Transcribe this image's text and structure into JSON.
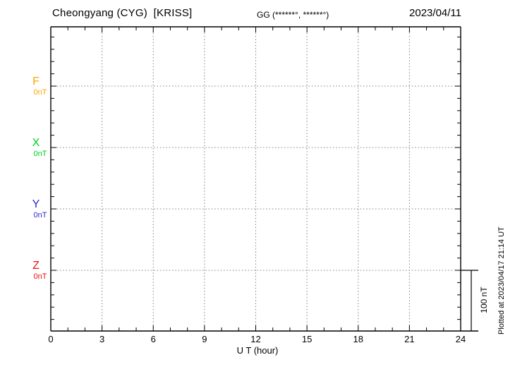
{
  "header": {
    "title": "Cheongyang (CYG)  [KRISS]",
    "coords_label": "GG (******°, ******°)",
    "date": "2023/04/11"
  },
  "chart_data": {
    "type": "line",
    "title": "Cheongyang (CYG) [KRISS] magnetogram for 2023/04/11",
    "xlabel": "U T (hour)",
    "ylabel": "",
    "x_range": [
      0,
      24
    ],
    "x_tick_hours": [
      0,
      3,
      6,
      9,
      12,
      15,
      18,
      21,
      24
    ],
    "x_tick_labels": [
      "0",
      "3",
      "6",
      "9",
      "12",
      "15",
      "18",
      "21",
      "24"
    ],
    "minor_x_tick_every_hours": 1,
    "grid": "dotted",
    "legend_position": "left-margin",
    "channels": [
      {
        "name": "F",
        "baseline_label": "0nT",
        "baseline_value_nT": 0,
        "color": "#FFA500"
      },
      {
        "name": "X",
        "baseline_label": "0nT",
        "baseline_value_nT": 0,
        "color": "#00CC22"
      },
      {
        "name": "Y",
        "baseline_label": "0nT",
        "baseline_value_nT": 0,
        "color": "#2B2BCF"
      },
      {
        "name": "Z",
        "baseline_label": "0nT",
        "baseline_value_nT": 0,
        "color": "#EE1111"
      }
    ],
    "series": [
      {
        "name": "F",
        "values": []
      },
      {
        "name": "X",
        "values": []
      },
      {
        "name": "Y",
        "values": []
      },
      {
        "name": "Z",
        "values": []
      }
    ],
    "series_note": "no data traces visible on this day; only dotted 0 nT baselines are drawn",
    "scale_bar": {
      "label": "100 nT",
      "value_nT": 100
    },
    "annotations": {
      "plotted_at": "Plotted at 2023/04/17 21:14 UT"
    }
  }
}
